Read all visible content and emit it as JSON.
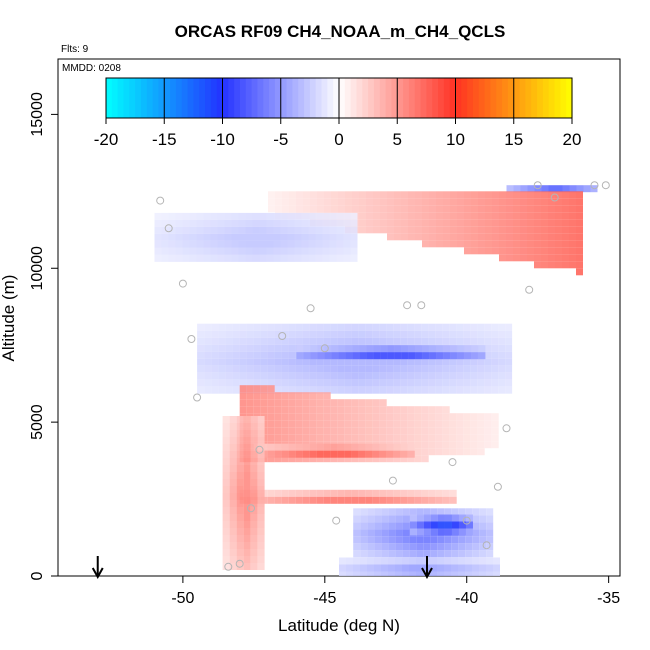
{
  "chart_data": {
    "type": "heatmap",
    "title": "ORCAS RF09 CH4_NOAA_m_CH4_QCLS",
    "xlabel": "Latitude (deg N)",
    "ylabel": "Altitude (m)",
    "xlim": [
      -54.4,
      -34.6
    ],
    "ylim": [
      0,
      16800
    ],
    "x_ticks": [
      -50,
      -45,
      -40,
      -35
    ],
    "x_tick_labels": [
      "-50",
      "-45",
      "-40",
      "-35"
    ],
    "y_ticks": [
      0,
      5000,
      10000,
      15000
    ],
    "y_tick_labels": [
      "0",
      "5000",
      "10000",
      "15000"
    ],
    "annotations": {
      "flights": "Flts: 9",
      "date": "MMDD: 0208"
    },
    "colorbar": {
      "range": [
        -20,
        20
      ],
      "ticks": [
        -20,
        -15,
        -10,
        -5,
        0,
        5,
        10,
        15,
        20
      ],
      "tick_labels": [
        "-20",
        "-15",
        "-10",
        "-5",
        "0",
        "5",
        "10",
        "15",
        "20"
      ]
    },
    "regions": [
      {
        "name": "upper-cyan-dots",
        "lat": [
          -38.6,
          -35.4
        ],
        "alt": [
          12500,
          12700
        ],
        "value": -14,
        "shape": "rect"
      },
      {
        "name": "upper-red-wedge",
        "lat": [
          -47.0,
          -36.0
        ],
        "alt": [
          9800,
          12500
        ],
        "value": 8,
        "shape": "wedge-left"
      },
      {
        "name": "upper-blue-band",
        "lat": [
          -51.0,
          -44.0
        ],
        "alt": [
          10300,
          11800
        ],
        "value": -3,
        "shape": "rect"
      },
      {
        "name": "mid-blue-layer",
        "lat": [
          -49.5,
          -38.5
        ],
        "alt": [
          6000,
          8200
        ],
        "value": -4,
        "shape": "rect"
      },
      {
        "name": "mid-blue-core",
        "lat": [
          -46.0,
          -39.5
        ],
        "alt": [
          7100,
          7500
        ],
        "value": -9,
        "shape": "rect"
      },
      {
        "name": "big-red-plume",
        "lat": [
          -48.0,
          -39.0
        ],
        "alt": [
          3800,
          6200
        ],
        "value": 6,
        "shape": "wedge-right"
      },
      {
        "name": "red-core",
        "lat": [
          -47.5,
          -42.0
        ],
        "alt": [
          3900,
          4300
        ],
        "value": 8,
        "shape": "rect"
      },
      {
        "name": "low-red-arm",
        "lat": [
          -48.0,
          -40.5
        ],
        "alt": [
          2400,
          2800
        ],
        "value": 7,
        "shape": "rect"
      },
      {
        "name": "red-column",
        "lat": [
          -48.6,
          -47.2
        ],
        "alt": [
          300,
          5200
        ],
        "value": 6,
        "shape": "rect"
      },
      {
        "name": "low-blue-layer",
        "lat": [
          -44.0,
          -39.3
        ],
        "alt": [
          700,
          2200
        ],
        "value": -7,
        "shape": "rect"
      },
      {
        "name": "low-blue-core",
        "lat": [
          -42.0,
          -39.8
        ],
        "alt": [
          1500,
          2000
        ],
        "value": -11,
        "shape": "rect"
      },
      {
        "name": "surface-blue",
        "lat": [
          -44.5,
          -39.0
        ],
        "alt": [
          0,
          600
        ],
        "value": -5,
        "shape": "rect"
      }
    ],
    "flight_points": [
      {
        "lat": -50.8,
        "alt": 12200
      },
      {
        "lat": -50.5,
        "alt": 11300
      },
      {
        "lat": -50.0,
        "alt": 9500
      },
      {
        "lat": -49.7,
        "alt": 7700
      },
      {
        "lat": -49.5,
        "alt": 5800
      },
      {
        "lat": -48.4,
        "alt": 300
      },
      {
        "lat": -48.0,
        "alt": 400
      },
      {
        "lat": -47.6,
        "alt": 2200
      },
      {
        "lat": -47.3,
        "alt": 4100
      },
      {
        "lat": -46.5,
        "alt": 7800
      },
      {
        "lat": -45.5,
        "alt": 8700
      },
      {
        "lat": -45.0,
        "alt": 7400
      },
      {
        "lat": -44.6,
        "alt": 1800
      },
      {
        "lat": -42.6,
        "alt": 3100
      },
      {
        "lat": -42.1,
        "alt": 8800
      },
      {
        "lat": -41.6,
        "alt": 8800
      },
      {
        "lat": -40.5,
        "alt": 3700
      },
      {
        "lat": -40.0,
        "alt": 1800
      },
      {
        "lat": -39.3,
        "alt": 1000
      },
      {
        "lat": -38.9,
        "alt": 2900
      },
      {
        "lat": -38.6,
        "alt": 4800
      },
      {
        "lat": -37.8,
        "alt": 9300
      },
      {
        "lat": -36.9,
        "alt": 12300
      },
      {
        "lat": -37.5,
        "alt": 12700
      },
      {
        "lat": -35.5,
        "alt": 12700
      },
      {
        "lat": -35.1,
        "alt": 12700
      }
    ],
    "markers": [
      {
        "lat": -53.0,
        "label": "start-arrow"
      },
      {
        "lat": -41.4,
        "label": "end-arrow"
      }
    ]
  }
}
